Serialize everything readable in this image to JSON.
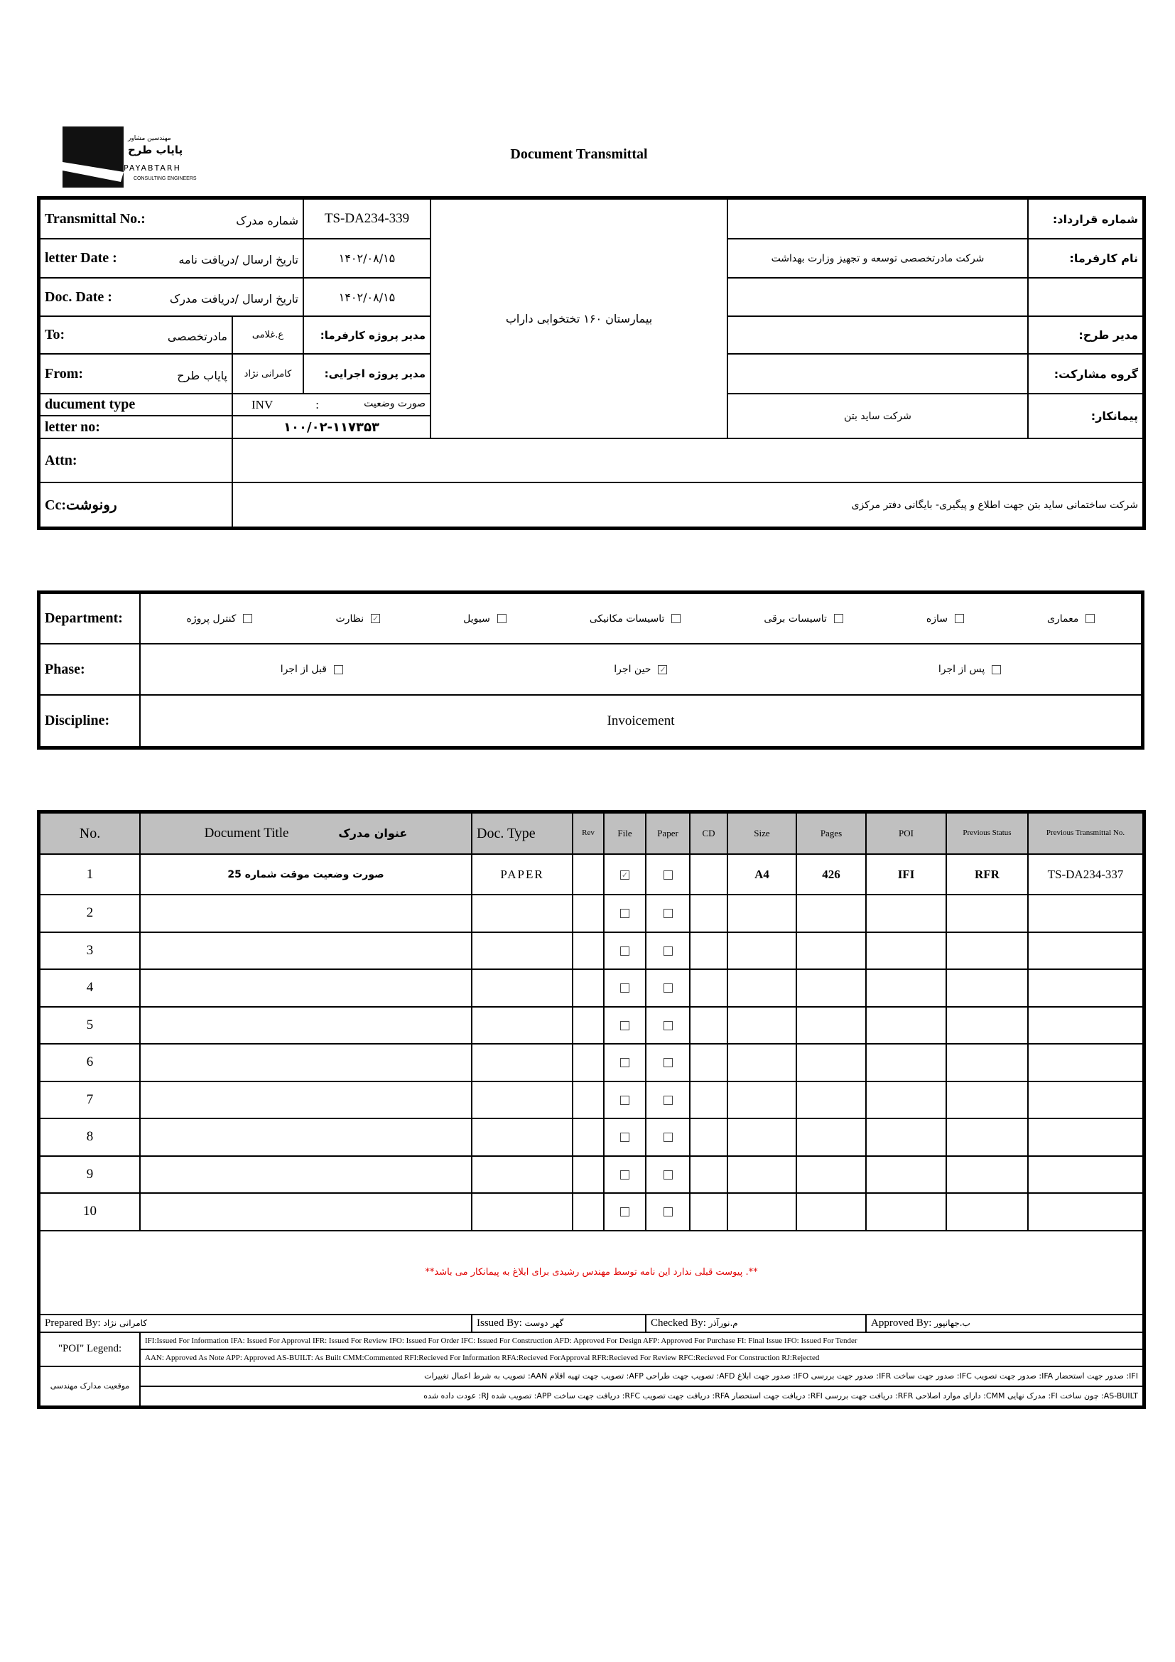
{
  "logo": {
    "fa_small": "مهندسین مشاور",
    "fa_name": "پایاب طرح",
    "en_name": "PAYABTARH",
    "en_sub": "CONSULTING ENGINEERS"
  },
  "title": "Document Transmittal",
  "info": {
    "transmittal_no_label": "Transmittal No.:",
    "transmittal_no_fa": "شماره مدرک",
    "transmittal_no": "TS-DA234-339",
    "letter_date_label": "letter Date :",
    "letter_date_fa": "تاریخ ارسال /دریافت نامه",
    "letter_date": "۱۴۰۲/۰۸/۱۵",
    "doc_date_label": "Doc. Date :",
    "doc_date_fa": "تاریخ ارسال /دریافت مدرک",
    "doc_date": "۱۴۰۲/۰۸/۱۵",
    "to_label": "To:",
    "to_value": "مادرتخصصی",
    "to_person": "ع.غلامی",
    "to_role": "مدیر پروژه کارفرما:",
    "from_label": "From:",
    "from_value": "پایاب طرح",
    "from_person": "کامرانی نژاد",
    "from_role": "مدیر پروژه اجرایی:",
    "doc_type_label": "ducument type",
    "doc_type_code": "INV",
    "doc_type_sep": ":",
    "doc_type_fa": "صورت وضعیت",
    "letter_no_label": "letter no:",
    "letter_no": "۱۰۰/۰۲-۱۱۷۳۵۳",
    "project": "بیمارستان ۱۶۰ تختخوابی داراب",
    "contract_no_label": "شماره قرارداد:",
    "contract_no": "",
    "client_label": "نام کارفرما:",
    "client": "شرکت مادرتخصصی توسعه و تجهیز وزارت بهداشت",
    "blank_label": "",
    "blank_value": "",
    "plan_manager_label": "مدیر طرح:",
    "plan_manager": "",
    "partnership_label": "گروه مشارکت:",
    "partnership": "",
    "contractor_label": "پیمانکار:",
    "contractor": "شرکت ساید بتن",
    "attn_label": "Attn:",
    "attn": "",
    "cc_label": "Cc:رونوشت",
    "cc": "شرکت ساختمانی ساید بتن جهت اطلاع و پیگیری- بایگانی دفتر مرکزی"
  },
  "classification": {
    "department_label": "Department:",
    "departments": [
      {
        "label": "معماری",
        "checked": false
      },
      {
        "label": "سازه",
        "checked": false
      },
      {
        "label": "تاسیسات برقی",
        "checked": false
      },
      {
        "label": "تاسیسات مکانیکی",
        "checked": false
      },
      {
        "label": "سیویل",
        "checked": false
      },
      {
        "label": "نظارت",
        "checked": true
      },
      {
        "label": "کنترل پروژه",
        "checked": false
      }
    ],
    "phase_label": "Phase:",
    "phases": [
      {
        "label": "پس از اجرا",
        "checked": false
      },
      {
        "label": "حین اجرا",
        "checked": true
      },
      {
        "label": "قبل از اجرا",
        "checked": false
      }
    ],
    "discipline_label": "Discipline:",
    "discipline": "Invoicement"
  },
  "documents": {
    "headers": {
      "no": "No.",
      "title_en": "Document Title",
      "title_fa": "عنوان مدرک",
      "doc_type": "Doc. Type",
      "rev": "Rev",
      "file": "File",
      "paper": "Paper",
      "cd": "CD",
      "size": "Size",
      "pages": "Pages",
      "poi": "POI",
      "prev_status": "Previous Status",
      "prev_transmittal": "Previous Transmittal No."
    },
    "rows": [
      {
        "no": "1",
        "title": "صورت وضعیت موقت شماره 25",
        "doc_type": "PAPER",
        "rev": "",
        "file": true,
        "paper": false,
        "cd": "",
        "size": "A4",
        "pages": "426",
        "poi": "IFI",
        "prev_status": "RFR",
        "prev_transmittal": "TS-DA234-337"
      },
      {
        "no": "2",
        "title": "",
        "doc_type": "",
        "rev": "",
        "file": false,
        "paper": false,
        "cd": "",
        "size": "",
        "pages": "",
        "poi": "",
        "prev_status": "",
        "prev_transmittal": ""
      },
      {
        "no": "3",
        "title": "",
        "doc_type": "",
        "rev": "",
        "file": false,
        "paper": false,
        "cd": "",
        "size": "",
        "pages": "",
        "poi": "",
        "prev_status": "",
        "prev_transmittal": ""
      },
      {
        "no": "4",
        "title": "",
        "doc_type": "",
        "rev": "",
        "file": false,
        "paper": false,
        "cd": "",
        "size": "",
        "pages": "",
        "poi": "",
        "prev_status": "",
        "prev_transmittal": ""
      },
      {
        "no": "5",
        "title": "",
        "doc_type": "",
        "rev": "",
        "file": false,
        "paper": false,
        "cd": "",
        "size": "",
        "pages": "",
        "poi": "",
        "prev_status": "",
        "prev_transmittal": ""
      },
      {
        "no": "6",
        "title": "",
        "doc_type": "",
        "rev": "",
        "file": false,
        "paper": false,
        "cd": "",
        "size": "",
        "pages": "",
        "poi": "",
        "prev_status": "",
        "prev_transmittal": ""
      },
      {
        "no": "7",
        "title": "",
        "doc_type": "",
        "rev": "",
        "file": false,
        "paper": false,
        "cd": "",
        "size": "",
        "pages": "",
        "poi": "",
        "prev_status": "",
        "prev_transmittal": ""
      },
      {
        "no": "8",
        "title": "",
        "doc_type": "",
        "rev": "",
        "file": false,
        "paper": false,
        "cd": "",
        "size": "",
        "pages": "",
        "poi": "",
        "prev_status": "",
        "prev_transmittal": ""
      },
      {
        "no": "9",
        "title": "",
        "doc_type": "",
        "rev": "",
        "file": false,
        "paper": false,
        "cd": "",
        "size": "",
        "pages": "",
        "poi": "",
        "prev_status": "",
        "prev_transmittal": ""
      },
      {
        "no": "10",
        "title": "",
        "doc_type": "",
        "rev": "",
        "file": false,
        "paper": false,
        "cd": "",
        "size": "",
        "pages": "",
        "poi": "",
        "prev_status": "",
        "prev_transmittal": ""
      }
    ],
    "note": "**. پیوست قبلی ندارد این نامه توسط مهندس رشیدی برای ابلاغ به پیمانکار می باشد**",
    "note_color": "#e00000"
  },
  "signatures": {
    "prepared_label": "Prepared By:",
    "prepared": "کامرانی نژاد",
    "issued_label": "Issued By:",
    "issued": "گهر دوست",
    "checked_label": "Checked By:",
    "checked": "م.نورآذر",
    "approved_label": "Approved By:",
    "approved": "ب.جهانپور"
  },
  "legend": {
    "poi_label": "\"POI\" Legend:",
    "poi_line1": "IFI:Issued For Information  IFA: Issued For Approval  IFR: Issued For Review   IFO: Issued For Order  IFC: Issued For Construction AFD: Approved For Design AFP: Approved For Purchase  FI: Final Issue  IFO: Issued For Tender",
    "poi_line2": "AAN: Approved As Note  APP: Approved  AS-BUILT: As Built CMM:Commented  RFI:Recieved For Information   RFA:Recieved ForApproval   RFR:Recieved For Review  RFC:Recieved For Construction  RJ:Rejected",
    "status_label": "موقعیت مدارک مهندسی",
    "status_line1": "IFI:  صدور جهت استحضار    IFA: صدور جهت تصویب  IFC: صدور جهت  ساخت   IFR:  صدور جهت بررسی   IFO: صدور جهت ابلاغ    AFD:  تصویب جهت طراحی    AFP: تصویب جهت تهیه اقلام     AAN: تصویب به شرط اعمال تغییرات",
    "status_line2": "AS-BUILT: چون ساخت   FI:  مدرک نهایی   CMM: دارای موارد اصلاحی    RFR: دریافت جهت بررسی   RFI: دریافت جهت استحضار   RFA: دریافت جهت تصویب    RFC: دریافت جهت ساخت    APP:  تصویب شده     RJ: عودت داده شده"
  }
}
